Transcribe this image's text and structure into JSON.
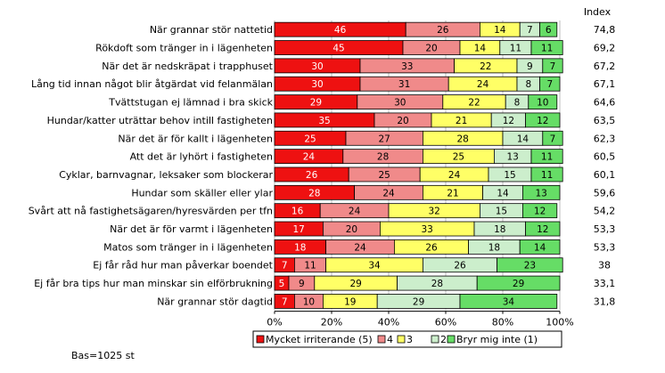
{
  "chart_data": {
    "type": "bar",
    "orientation": "horizontal",
    "stacked": true,
    "title": "",
    "index_header": "Index",
    "base_note": "Bas=1025 st",
    "xlim": [
      0,
      100
    ],
    "x_ticks": [
      "0%",
      "20%",
      "40%",
      "60%",
      "80%",
      "100%"
    ],
    "categories": [
      "När grannar stör nattetid",
      "Rökdoft som tränger in i lägenheten",
      "När det är nedskräpat i trapphuset",
      "Lång tid innan något blir åtgärdat vid felanmälan",
      "Tvättstugan ej lämnad i bra skick",
      "Hundar/katter uträttar behov intill fastigheten",
      "När det är för kallt i lägenheten",
      "Att det är lyhört i fastigheten",
      "Cyklar, barnvagnar, leksaker som blockerar",
      "Hundar som skäller eller ylar",
      "Svårt att nå fastighetsägaren/hyresvärden per tfn",
      "När det är för varmt i lägenheten",
      "Matos som tränger in i lägenheten",
      "Ej får råd hur man påverkar boendet",
      "Ej får bra tips hur man minskar sin elförbrukning",
      "När grannar stör dagtid"
    ],
    "series": [
      {
        "name": "Mycket irriterande (5)",
        "color": "#ee1111",
        "values": [
          46,
          45,
          30,
          30,
          29,
          35,
          25,
          24,
          26,
          28,
          16,
          17,
          18,
          7,
          5,
          7
        ]
      },
      {
        "name": "4",
        "color": "#f08a8a",
        "values": [
          26,
          20,
          33,
          31,
          30,
          20,
          27,
          28,
          25,
          24,
          24,
          20,
          24,
          11,
          9,
          10
        ]
      },
      {
        "name": "3",
        "color": "#ffff66",
        "values": [
          14,
          14,
          22,
          24,
          22,
          21,
          28,
          25,
          24,
          21,
          32,
          33,
          26,
          34,
          29,
          19
        ]
      },
      {
        "name": "2",
        "color": "#cceecc",
        "values": [
          7,
          11,
          9,
          8,
          8,
          12,
          14,
          13,
          15,
          14,
          15,
          18,
          18,
          26,
          28,
          29
        ]
      },
      {
        "name": "Bryr mig inte (1)",
        "color": "#66dd66",
        "values": [
          6,
          11,
          7,
          7,
          10,
          12,
          7,
          11,
          11,
          13,
          12,
          12,
          14,
          23,
          29,
          34
        ]
      }
    ],
    "index": [
      "74,8",
      "69,2",
      "67,2",
      "67,1",
      "64,6",
      "63,5",
      "62,3",
      "60,5",
      "60,1",
      "59,6",
      "54,2",
      "53,3",
      "53,3",
      "38",
      "33,1",
      "31,8"
    ],
    "legend": {
      "position": "bottom",
      "labels": [
        "Mycket irriterande (5)",
        "4",
        "3",
        "2",
        "Bryr mig inte (1)"
      ]
    }
  }
}
